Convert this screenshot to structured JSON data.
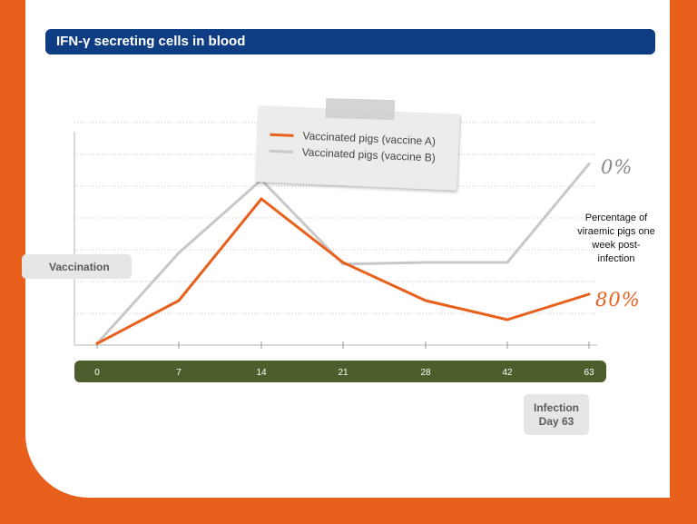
{
  "title": "IFN-γ secreting cells in blood",
  "colors": {
    "background_orange": "#e8601c",
    "title_blue": "#0f3d84",
    "series_a": "#e8601c",
    "series_b": "#c8c8c8",
    "axis_green": "#4c5e2b"
  },
  "labels": {
    "vaccination": "Vaccination",
    "infection_line1": "Infection",
    "infection_line2": "Day 63",
    "side_note": "Percentage of viraemic pigs one week post-infection",
    "pct_b": "0%",
    "pct_a": "80%"
  },
  "chart_data": {
    "type": "line",
    "title": "IFN-γ secreting cells in blood",
    "xlabel": "",
    "ylabel": "",
    "categories": [
      "0",
      "7",
      "14",
      "21",
      "28",
      "42",
      "63"
    ],
    "ylim": [
      0,
      7
    ],
    "grid": true,
    "legend_position": "top-center",
    "series": [
      {
        "name": "Vaccinated pigs (vaccine A)",
        "color": "#e8601c",
        "values": [
          0.05,
          1.4,
          4.6,
          2.6,
          1.4,
          0.8,
          1.6
        ],
        "end_label": "80%"
      },
      {
        "name": "Vaccinated pigs (vaccine B)",
        "color": "#c8c8c8",
        "values": [
          0.05,
          2.9,
          5.2,
          2.55,
          2.6,
          2.6,
          5.7
        ],
        "end_label": "0%"
      }
    ]
  }
}
